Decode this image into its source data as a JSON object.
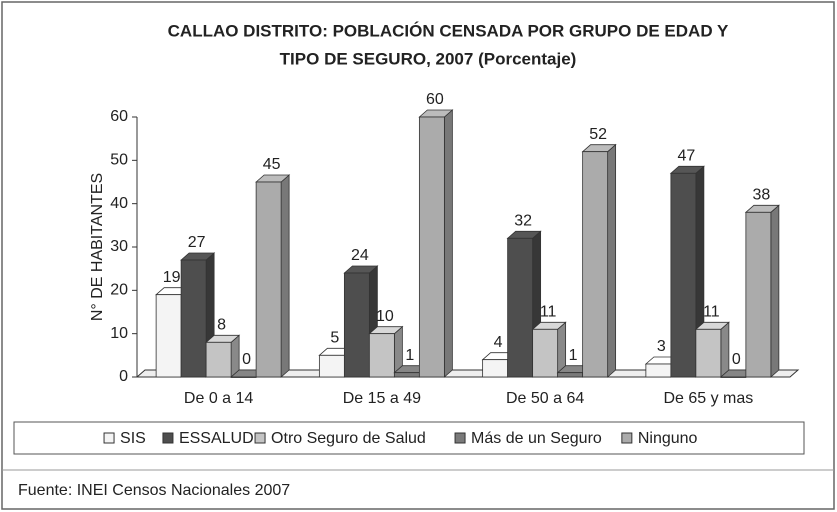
{
  "chart_data": {
    "type": "bar3d",
    "title": [
      "CALLAO DISTRITO: POBLACIÓN CENSADA POR GRUPO DE EDAD Y",
      "TIPO DE SEGURO, 2007 (Porcentaje)"
    ],
    "y_label": "N° DE HABITANTES",
    "categories": [
      "De 0 a 14",
      "De 15 a 49",
      "De 50 a 64",
      "De 65 y mas"
    ],
    "series": [
      {
        "name": "SIS",
        "color": "#f4f4f4",
        "values": [
          19,
          5,
          4,
          3
        ]
      },
      {
        "name": "ESSALUD",
        "color": "#4e4e4e",
        "values": [
          27,
          24,
          32,
          47
        ]
      },
      {
        "name": "Otro Seguro de Salud",
        "color": "#c4c4c4",
        "values": [
          8,
          10,
          11,
          11
        ]
      },
      {
        "name": "Más de un Seguro",
        "color": "#7a7a7a",
        "values": [
          0,
          1,
          1,
          0
        ]
      },
      {
        "name": "Ninguno",
        "color": "#ababab",
        "values": [
          45,
          60,
          52,
          38
        ]
      }
    ],
    "ylim": [
      0,
      60
    ],
    "yticks": [
      0,
      10,
      20,
      30,
      40,
      50,
      60
    ],
    "legend": "bottom",
    "source": "Fuente: INEI Censos Nacionales 2007"
  }
}
